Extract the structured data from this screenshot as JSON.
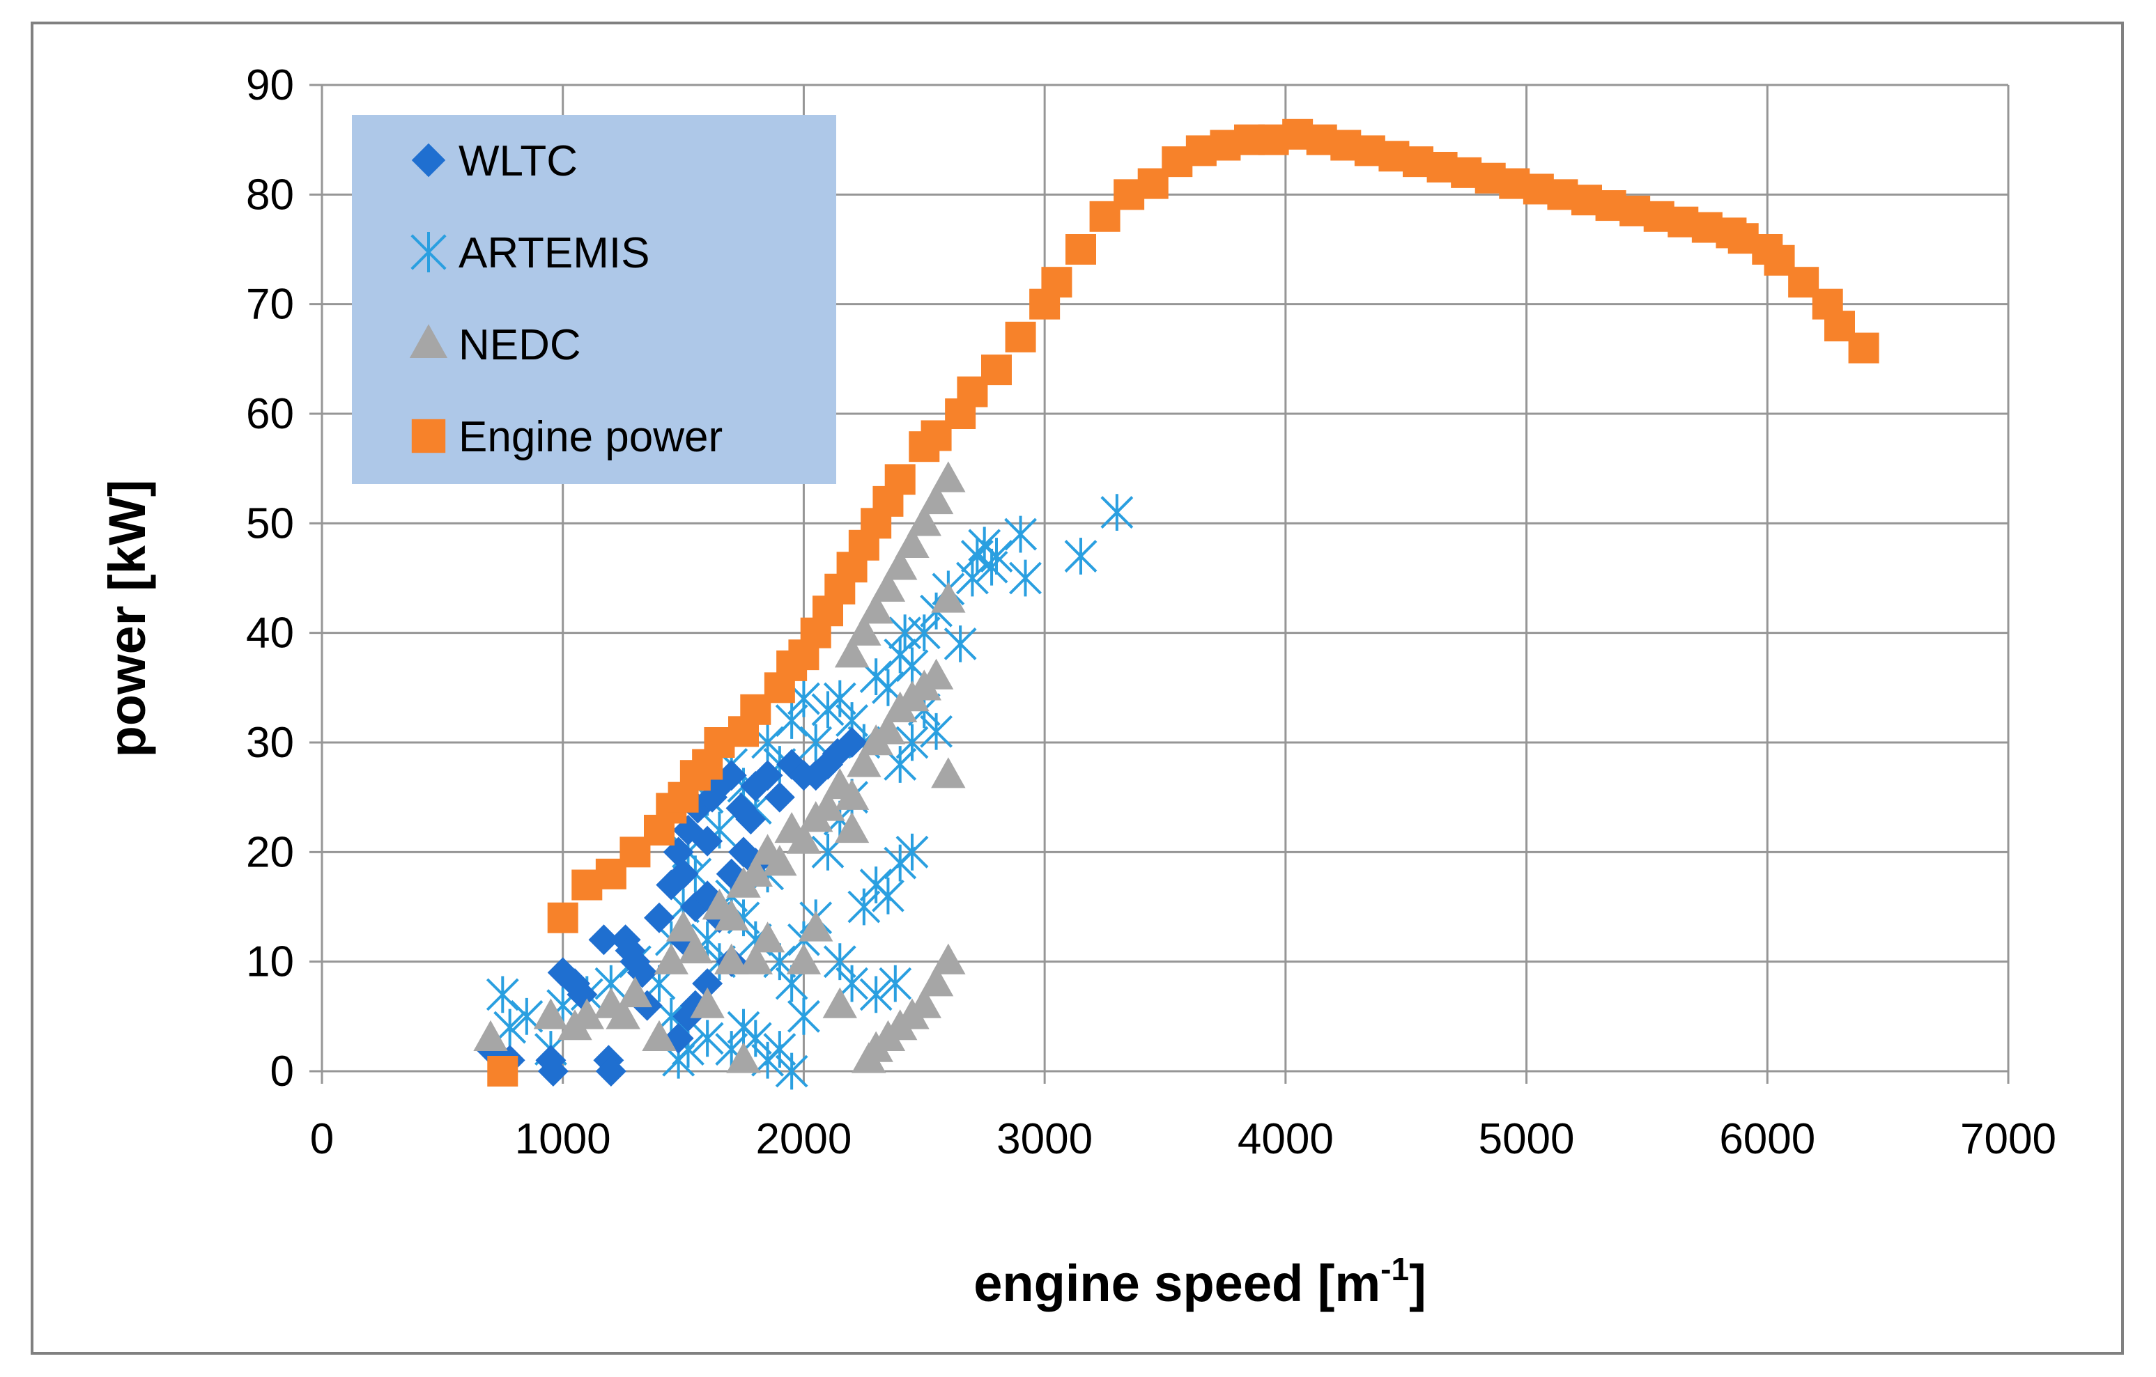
{
  "chart_data": {
    "type": "scatter",
    "title": "",
    "xlabel": "engine speed [m",
    "xlabel_superscript": "-1",
    "xlabel_suffix": "]",
    "ylabel": "power [kW]",
    "xlim": [
      0,
      7000
    ],
    "ylim": [
      0,
      90
    ],
    "x_ticks": [
      0,
      1000,
      2000,
      3000,
      4000,
      5000,
      6000,
      7000
    ],
    "y_ticks": [
      0,
      10,
      20,
      30,
      40,
      50,
      60,
      70,
      80,
      90
    ],
    "grid": true,
    "legend_position": "top-left",
    "colors": {
      "wltc": "#1f6fd0",
      "artemis": "#2a9fe0",
      "nedc": "#a6a6a6",
      "engine": "#f7822a",
      "legend_bg": "#aec8e8",
      "grid": "#969696",
      "frame": "#808080"
    },
    "series": [
      {
        "name": "WLTC",
        "marker": "diamond",
        "points": [
          [
            700,
            2
          ],
          [
            780,
            1
          ],
          [
            950,
            1
          ],
          [
            960,
            0
          ],
          [
            1000,
            9
          ],
          [
            1050,
            8
          ],
          [
            1080,
            7
          ],
          [
            1170,
            12
          ],
          [
            1190,
            1
          ],
          [
            1200,
            0
          ],
          [
            1260,
            12
          ],
          [
            1280,
            11
          ],
          [
            1300,
            10
          ],
          [
            1330,
            9
          ],
          [
            1350,
            6
          ],
          [
            1400,
            14
          ],
          [
            1450,
            17
          ],
          [
            1480,
            20
          ],
          [
            1500,
            18
          ],
          [
            1520,
            22
          ],
          [
            1560,
            24
          ],
          [
            1600,
            21
          ],
          [
            1620,
            25
          ],
          [
            1650,
            26
          ],
          [
            1700,
            27
          ],
          [
            1740,
            24
          ],
          [
            1780,
            23
          ],
          [
            1800,
            26
          ],
          [
            1850,
            27
          ],
          [
            1900,
            25
          ],
          [
            1950,
            28
          ],
          [
            2000,
            27
          ],
          [
            2050,
            27
          ],
          [
            2100,
            28
          ],
          [
            2140,
            29
          ],
          [
            2200,
            30
          ],
          [
            1500,
            12
          ],
          [
            1550,
            15
          ],
          [
            1600,
            16
          ],
          [
            1650,
            14
          ],
          [
            1700,
            18
          ],
          [
            1750,
            20
          ],
          [
            1800,
            19
          ],
          [
            1550,
            6
          ],
          [
            1600,
            8
          ],
          [
            1700,
            10
          ],
          [
            1480,
            3
          ],
          [
            1520,
            5
          ]
        ]
      },
      {
        "name": "ARTEMIS",
        "marker": "asterisk",
        "points": [
          [
            750,
            7
          ],
          [
            780,
            4
          ],
          [
            850,
            5
          ],
          [
            950,
            2
          ],
          [
            1000,
            6
          ],
          [
            1100,
            7
          ],
          [
            1200,
            8
          ],
          [
            1300,
            10
          ],
          [
            1400,
            8
          ],
          [
            1450,
            5
          ],
          [
            1450,
            12
          ],
          [
            1500,
            15
          ],
          [
            1520,
            20
          ],
          [
            1550,
            18
          ],
          [
            1600,
            25
          ],
          [
            1650,
            22
          ],
          [
            1700,
            28
          ],
          [
            1750,
            26
          ],
          [
            1800,
            24
          ],
          [
            1850,
            30
          ],
          [
            1900,
            28
          ],
          [
            1950,
            32
          ],
          [
            2000,
            34
          ],
          [
            2050,
            30
          ],
          [
            2100,
            33
          ],
          [
            2150,
            34
          ],
          [
            2200,
            32
          ],
          [
            2250,
            30
          ],
          [
            2300,
            36
          ],
          [
            2350,
            35
          ],
          [
            2400,
            38
          ],
          [
            2420,
            40
          ],
          [
            2450,
            37
          ],
          [
            2500,
            40
          ],
          [
            2550,
            42
          ],
          [
            2600,
            44
          ],
          [
            2650,
            39
          ],
          [
            2700,
            45
          ],
          [
            2720,
            47
          ],
          [
            2750,
            48
          ],
          [
            2780,
            46
          ],
          [
            2800,
            47
          ],
          [
            2900,
            49
          ],
          [
            2920,
            45
          ],
          [
            3150,
            47
          ],
          [
            3300,
            51
          ],
          [
            1480,
            1
          ],
          [
            1520,
            2
          ],
          [
            1600,
            3
          ],
          [
            1700,
            2
          ],
          [
            1750,
            4
          ],
          [
            1800,
            3
          ],
          [
            1850,
            1
          ],
          [
            1900,
            2
          ],
          [
            1950,
            0
          ],
          [
            2000,
            5
          ],
          [
            2150,
            10
          ],
          [
            2200,
            8
          ],
          [
            2250,
            15
          ],
          [
            2300,
            17
          ],
          [
            2350,
            16
          ],
          [
            2400,
            19
          ],
          [
            2450,
            20
          ],
          [
            2300,
            7
          ],
          [
            2380,
            8
          ],
          [
            2400,
            28
          ],
          [
            2450,
            30
          ],
          [
            2500,
            33
          ],
          [
            2550,
            31
          ],
          [
            2100,
            20
          ],
          [
            2150,
            23
          ],
          [
            2200,
            25
          ],
          [
            2000,
            12
          ],
          [
            2050,
            14
          ],
          [
            1900,
            10
          ],
          [
            1950,
            8
          ],
          [
            1600,
            12
          ],
          [
            1650,
            10
          ],
          [
            1700,
            16
          ],
          [
            1750,
            14
          ],
          [
            1800,
            12
          ],
          [
            1850,
            18
          ]
        ]
      },
      {
        "name": "NEDC",
        "marker": "triangle",
        "points": [
          [
            700,
            3
          ],
          [
            950,
            5
          ],
          [
            1050,
            4
          ],
          [
            1100,
            5
          ],
          [
            1200,
            6
          ],
          [
            1250,
            5
          ],
          [
            1300,
            7
          ],
          [
            1400,
            3
          ],
          [
            1450,
            10
          ],
          [
            1500,
            13
          ],
          [
            1550,
            11
          ],
          [
            1600,
            6
          ],
          [
            1650,
            15
          ],
          [
            1700,
            14
          ],
          [
            1750,
            17
          ],
          [
            1800,
            18
          ],
          [
            1850,
            20
          ],
          [
            1900,
            19
          ],
          [
            1950,
            22
          ],
          [
            2000,
            21
          ],
          [
            2050,
            23
          ],
          [
            2100,
            24
          ],
          [
            2150,
            26
          ],
          [
            2200,
            25
          ],
          [
            2250,
            28
          ],
          [
            2300,
            30
          ],
          [
            2350,
            31
          ],
          [
            2400,
            33
          ],
          [
            2450,
            34
          ],
          [
            2500,
            35
          ],
          [
            2550,
            36
          ],
          [
            2200,
            38
          ],
          [
            2250,
            40
          ],
          [
            2300,
            42
          ],
          [
            2350,
            44
          ],
          [
            2400,
            46
          ],
          [
            2450,
            48
          ],
          [
            2500,
            50
          ],
          [
            2550,
            52
          ],
          [
            2600,
            54
          ],
          [
            2600,
            43
          ],
          [
            2600,
            27
          ],
          [
            2200,
            22
          ],
          [
            2150,
            6
          ],
          [
            2270,
            1
          ],
          [
            2300,
            2
          ],
          [
            2350,
            3
          ],
          [
            2400,
            4
          ],
          [
            2450,
            5
          ],
          [
            2500,
            6
          ],
          [
            2550,
            8
          ],
          [
            2600,
            10
          ],
          [
            1750,
            1
          ],
          [
            2000,
            10
          ],
          [
            2050,
            13
          ],
          [
            1800,
            10
          ],
          [
            1850,
            12
          ],
          [
            1700,
            10
          ]
        ]
      },
      {
        "name": "Engine power",
        "marker": "square",
        "points": [
          [
            750,
            0
          ],
          [
            1000,
            14
          ],
          [
            1100,
            17
          ],
          [
            1200,
            18
          ],
          [
            1300,
            20
          ],
          [
            1400,
            22
          ],
          [
            1450,
            24
          ],
          [
            1500,
            25
          ],
          [
            1550,
            27
          ],
          [
            1600,
            28
          ],
          [
            1650,
            30
          ],
          [
            1750,
            31
          ],
          [
            1800,
            33
          ],
          [
            1900,
            35
          ],
          [
            1950,
            37
          ],
          [
            2000,
            38
          ],
          [
            2050,
            40
          ],
          [
            2100,
            42
          ],
          [
            2150,
            44
          ],
          [
            2200,
            46
          ],
          [
            2250,
            48
          ],
          [
            2300,
            50
          ],
          [
            2350,
            52
          ],
          [
            2400,
            54
          ],
          [
            2500,
            57
          ],
          [
            2550,
            58
          ],
          [
            2650,
            60
          ],
          [
            2700,
            62
          ],
          [
            2800,
            64
          ],
          [
            2900,
            67
          ],
          [
            3000,
            70
          ],
          [
            3050,
            72
          ],
          [
            3150,
            75
          ],
          [
            3250,
            78
          ],
          [
            3350,
            80
          ],
          [
            3450,
            81
          ],
          [
            3550,
            83
          ],
          [
            3650,
            84
          ],
          [
            3750,
            84.5
          ],
          [
            3850,
            85
          ],
          [
            3950,
            85
          ],
          [
            4050,
            85.5
          ],
          [
            4150,
            85
          ],
          [
            4250,
            84.5
          ],
          [
            4350,
            84
          ],
          [
            4450,
            83.5
          ],
          [
            4550,
            83
          ],
          [
            4650,
            82.5
          ],
          [
            4750,
            82
          ],
          [
            4850,
            81.5
          ],
          [
            4950,
            81
          ],
          [
            5050,
            80.5
          ],
          [
            5150,
            80
          ],
          [
            5250,
            79.5
          ],
          [
            5350,
            79
          ],
          [
            5450,
            78.5
          ],
          [
            5550,
            78
          ],
          [
            5650,
            77.5
          ],
          [
            5750,
            77
          ],
          [
            5850,
            76.5
          ],
          [
            5900,
            76
          ],
          [
            6000,
            75
          ],
          [
            6050,
            74
          ],
          [
            6150,
            72
          ],
          [
            6250,
            70
          ],
          [
            6300,
            68
          ],
          [
            6400,
            66
          ]
        ]
      }
    ]
  }
}
